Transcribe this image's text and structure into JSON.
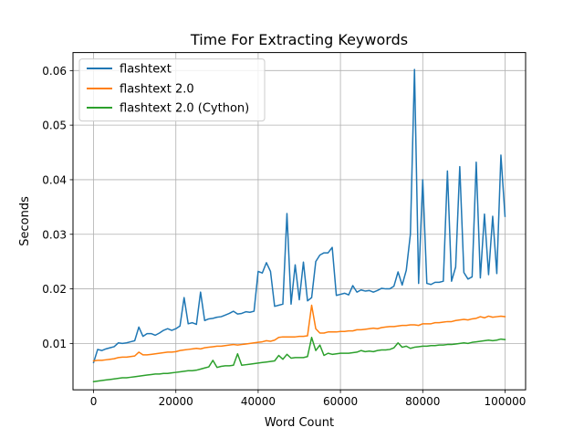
{
  "chart_data": {
    "type": "line",
    "title": "Time For Extracting Keywords",
    "xlabel": "Word Count",
    "ylabel": "Seconds",
    "xlim": [
      -5000,
      105000
    ],
    "ylim": [
      0.0015,
      0.0633
    ],
    "xticks": [
      0,
      20000,
      40000,
      60000,
      80000,
      100000
    ],
    "xtick_labels": [
      "0",
      "20000",
      "40000",
      "60000",
      "80000",
      "100000"
    ],
    "yticks": [
      0.01,
      0.02,
      0.03,
      0.04,
      0.05,
      0.06
    ],
    "ytick_labels": [
      "0.01",
      "0.02",
      "0.03",
      "0.04",
      "0.05",
      "0.06"
    ],
    "grid": true,
    "legend_position": "top-left",
    "x": [
      0,
      1000,
      2000,
      3000,
      4000,
      5000,
      6000,
      7000,
      8000,
      9000,
      10000,
      11000,
      12000,
      13000,
      14000,
      15000,
      16000,
      17000,
      18000,
      19000,
      20000,
      21000,
      22000,
      23000,
      24000,
      25000,
      26000,
      27000,
      28000,
      29000,
      30000,
      31000,
      32000,
      33000,
      34000,
      35000,
      36000,
      37000,
      38000,
      39000,
      40000,
      41000,
      42000,
      43000,
      44000,
      45000,
      46000,
      47000,
      48000,
      49000,
      50000,
      51000,
      52000,
      53000,
      54000,
      55000,
      56000,
      57000,
      58000,
      59000,
      60000,
      61000,
      62000,
      63000,
      64000,
      65000,
      66000,
      67000,
      68000,
      69000,
      70000,
      71000,
      72000,
      73000,
      74000,
      75000,
      76000,
      77000,
      78000,
      79000,
      80000,
      81000,
      82000,
      83000,
      84000,
      85000,
      86000,
      87000,
      88000,
      89000,
      90000,
      91000,
      92000,
      93000,
      94000,
      95000,
      96000,
      97000,
      98000,
      99000,
      100000
    ],
    "series": [
      {
        "name": "flashtext",
        "color": "#1f77b4",
        "values": [
          0.0065,
          0.0089,
          0.0087,
          0.009,
          0.0092,
          0.0094,
          0.0101,
          0.01,
          0.0101,
          0.0103,
          0.0105,
          0.013,
          0.0113,
          0.0118,
          0.0118,
          0.0115,
          0.0119,
          0.0124,
          0.0127,
          0.0124,
          0.0127,
          0.0132,
          0.0184,
          0.0136,
          0.0138,
          0.0135,
          0.0194,
          0.0142,
          0.0145,
          0.0146,
          0.0148,
          0.0149,
          0.0152,
          0.0155,
          0.0159,
          0.0154,
          0.0155,
          0.0158,
          0.0157,
          0.0159,
          0.0232,
          0.0229,
          0.0248,
          0.0232,
          0.0168,
          0.017,
          0.0172,
          0.0338,
          0.0172,
          0.0244,
          0.018,
          0.0249,
          0.0178,
          0.0184,
          0.025,
          0.0262,
          0.0266,
          0.0266,
          0.0276,
          0.0188,
          0.019,
          0.0192,
          0.0189,
          0.0206,
          0.0194,
          0.0198,
          0.0196,
          0.0197,
          0.0194,
          0.0197,
          0.0201,
          0.02,
          0.02,
          0.0205,
          0.0231,
          0.0207,
          0.0234,
          0.03,
          0.0602,
          0.021,
          0.04,
          0.021,
          0.0208,
          0.0212,
          0.0212,
          0.0214,
          0.0416,
          0.0214,
          0.024,
          0.0424,
          0.023,
          0.0218,
          0.0222,
          0.0432,
          0.022,
          0.0337,
          0.0226,
          0.0333,
          0.0228,
          0.0445,
          0.0333
        ]
      },
      {
        "name": "flashtext 2.0",
        "color": "#ff7f0e",
        "values": [
          0.0068,
          0.0069,
          0.0069,
          0.007,
          0.0071,
          0.0072,
          0.0074,
          0.0075,
          0.0075,
          0.0076,
          0.0077,
          0.0084,
          0.0079,
          0.0079,
          0.008,
          0.0081,
          0.0082,
          0.0083,
          0.0084,
          0.0084,
          0.0085,
          0.0087,
          0.0088,
          0.0089,
          0.009,
          0.0091,
          0.009,
          0.0092,
          0.0093,
          0.0094,
          0.0095,
          0.0095,
          0.0096,
          0.0097,
          0.0098,
          0.0097,
          0.0098,
          0.0099,
          0.01,
          0.0101,
          0.0102,
          0.0103,
          0.0105,
          0.0104,
          0.0106,
          0.0111,
          0.0112,
          0.0112,
          0.0112,
          0.0112,
          0.0113,
          0.0113,
          0.0114,
          0.017,
          0.0127,
          0.0119,
          0.0119,
          0.0121,
          0.0121,
          0.0121,
          0.0122,
          0.0122,
          0.0123,
          0.0123,
          0.0125,
          0.0125,
          0.0126,
          0.0127,
          0.0128,
          0.0127,
          0.0129,
          0.013,
          0.0131,
          0.0131,
          0.0132,
          0.0133,
          0.0133,
          0.0134,
          0.0134,
          0.0133,
          0.0136,
          0.0136,
          0.0136,
          0.0138,
          0.0138,
          0.0139,
          0.014,
          0.014,
          0.0142,
          0.0143,
          0.0144,
          0.0143,
          0.0145,
          0.0146,
          0.0149,
          0.0147,
          0.015,
          0.0148,
          0.0149,
          0.015,
          0.0149
        ]
      },
      {
        "name": "flashtext 2.0 (Cython)",
        "color": "#2ca02c",
        "values": [
          0.003,
          0.0031,
          0.0032,
          0.0033,
          0.0034,
          0.0035,
          0.0036,
          0.0037,
          0.0037,
          0.0038,
          0.0039,
          0.004,
          0.0041,
          0.0042,
          0.0043,
          0.0044,
          0.0044,
          0.0045,
          0.0045,
          0.0046,
          0.0047,
          0.0048,
          0.0049,
          0.005,
          0.005,
          0.0051,
          0.0053,
          0.0055,
          0.0057,
          0.0069,
          0.0056,
          0.0058,
          0.0059,
          0.0059,
          0.006,
          0.0081,
          0.006,
          0.0061,
          0.0062,
          0.0063,
          0.0064,
          0.0065,
          0.0066,
          0.0067,
          0.0068,
          0.0078,
          0.0071,
          0.008,
          0.0073,
          0.0074,
          0.0074,
          0.0074,
          0.0076,
          0.0111,
          0.0087,
          0.0097,
          0.0078,
          0.0082,
          0.008,
          0.0081,
          0.0082,
          0.0082,
          0.0082,
          0.0083,
          0.0084,
          0.0087,
          0.0085,
          0.0086,
          0.0085,
          0.0087,
          0.0088,
          0.0088,
          0.0089,
          0.0092,
          0.0101,
          0.0093,
          0.0095,
          0.0091,
          0.0093,
          0.0094,
          0.0095,
          0.0095,
          0.0096,
          0.0096,
          0.0097,
          0.0097,
          0.0098,
          0.0098,
          0.0099,
          0.01,
          0.0101,
          0.01,
          0.0102,
          0.0103,
          0.0104,
          0.0105,
          0.0106,
          0.0105,
          0.0106,
          0.0108,
          0.0107
        ]
      }
    ]
  }
}
